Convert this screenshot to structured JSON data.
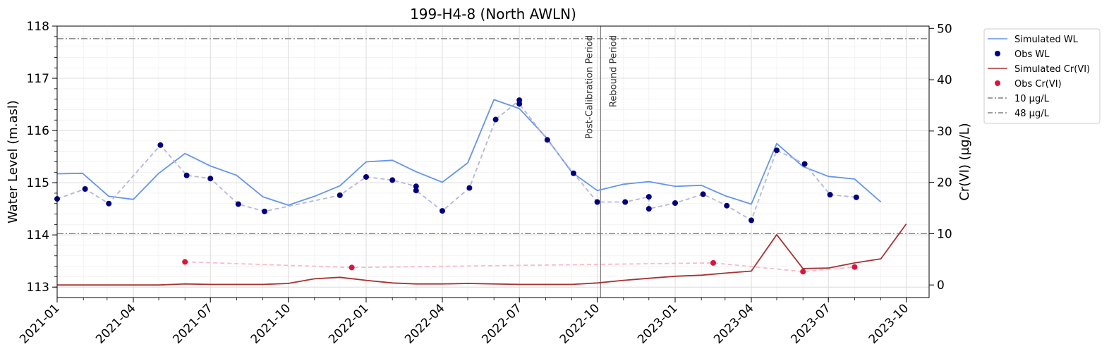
{
  "chart_data": {
    "type": "line",
    "title": "199-H4-8 (North AWLN)",
    "ylabel": "Water Level (m.asl)",
    "y2label": "Cr(VI) (µg/L)",
    "xlim": [
      "2021-01-01",
      "2023-10-28"
    ],
    "ylim": [
      112.8,
      118
    ],
    "y2lim": [
      -2.45,
      50.45
    ],
    "y_ticks": [
      113,
      114,
      115,
      116,
      117,
      118
    ],
    "y2_ticks": [
      0,
      10,
      20,
      30,
      40,
      50
    ],
    "x_tick_dates": [
      "2021-01-01",
      "2021-04-01",
      "2021-07-01",
      "2021-10-01",
      "2022-01-01",
      "2022-04-01",
      "2022-07-01",
      "2022-10-01",
      "2023-01-01",
      "2023-04-01",
      "2023-07-01",
      "2023-10-01"
    ],
    "x_tick_labels": [
      "2021-01",
      "2021-04",
      "2021-07",
      "2021-10",
      "2022-01",
      "2022-04",
      "2022-07",
      "2022-10",
      "2023-01",
      "2023-04",
      "2023-07",
      "2023-10"
    ],
    "grid": true,
    "legend_position": "outside-right-top",
    "series": [
      {
        "name": "Simulated WL",
        "kind": "line",
        "axis": "left",
        "color": "#6495ED",
        "x": [
          "2021-01-01",
          "2021-01-31",
          "2021-03-03",
          "2021-04-01",
          "2021-05-01",
          "2021-06-01",
          "2021-07-01",
          "2021-08-01",
          "2021-09-01",
          "2021-10-01",
          "2021-11-01",
          "2021-12-01",
          "2022-01-01",
          "2022-02-01",
          "2022-03-01",
          "2022-04-01",
          "2022-05-01",
          "2022-06-01",
          "2022-07-01",
          "2022-08-01",
          "2022-09-01",
          "2022-10-01",
          "2022-11-01",
          "2022-12-01",
          "2023-01-01",
          "2023-02-01",
          "2023-03-01",
          "2023-04-01",
          "2023-05-01",
          "2023-06-01",
          "2023-07-01",
          "2023-08-01",
          "2023-09-01"
        ],
        "y": [
          115.17,
          115.18,
          114.74,
          114.68,
          115.18,
          115.56,
          115.32,
          115.14,
          114.73,
          114.57,
          114.74,
          114.94,
          115.4,
          115.43,
          115.21,
          115.01,
          115.38,
          116.59,
          116.42,
          115.88,
          115.2,
          114.85,
          114.97,
          115.02,
          114.93,
          114.95,
          114.75,
          114.59,
          115.75,
          115.31,
          115.12,
          115.07,
          114.63
        ]
      },
      {
        "name": "Obs WL",
        "kind": "scatter",
        "axis": "left",
        "color": "#000080",
        "dashed_connector_color": "#b7b5dc",
        "x": [
          "2021-01-01",
          "2021-02-03",
          "2021-03-03",
          "2021-05-03",
          "2021-06-03",
          "2021-07-01",
          "2021-08-03",
          "2021-09-03",
          "2021-12-01",
          "2022-01-01",
          "2022-02-01",
          "2022-03-01",
          "2022-03-01",
          "2022-04-01",
          "2022-05-03",
          "2022-06-03",
          "2022-07-01",
          "2022-07-01",
          "2022-08-03",
          "2022-09-03",
          "2022-10-01",
          "2022-11-03",
          "2022-12-01",
          "2022-12-01",
          "2023-01-01",
          "2023-02-03",
          "2023-03-03",
          "2023-04-01",
          "2023-05-01",
          "2023-06-03",
          "2023-07-03",
          "2023-08-03"
        ],
        "y": [
          114.69,
          114.88,
          114.6,
          115.72,
          115.14,
          115.08,
          114.59,
          114.45,
          114.76,
          115.11,
          115.05,
          114.93,
          114.85,
          114.46,
          114.9,
          116.21,
          116.58,
          116.51,
          115.82,
          115.18,
          114.63,
          114.63,
          114.73,
          114.5,
          114.61,
          114.78,
          114.56,
          114.28,
          115.62,
          115.36,
          114.77,
          114.72
        ]
      },
      {
        "name": "Simulated Cr(VI)",
        "kind": "line",
        "axis": "right",
        "color": "#a83232",
        "x": [
          "2021-01-01",
          "2021-03-01",
          "2021-05-01",
          "2021-06-01",
          "2021-07-01",
          "2021-08-01",
          "2021-09-01",
          "2021-10-01",
          "2021-11-01",
          "2021-12-01",
          "2022-01-01",
          "2022-02-01",
          "2022-03-01",
          "2022-04-01",
          "2022-05-01",
          "2022-06-01",
          "2022-07-01",
          "2022-08-01",
          "2022-09-01",
          "2022-10-01",
          "2022-11-01",
          "2022-12-01",
          "2023-01-01",
          "2023-02-01",
          "2023-03-01",
          "2023-04-01",
          "2023-05-01",
          "2023-06-01",
          "2023-07-01",
          "2023-08-01",
          "2023-09-01",
          "2023-10-01"
        ],
        "y": [
          0,
          0,
          0,
          0.2,
          0.1,
          0.1,
          0.1,
          0.3,
          1.2,
          1.5,
          0.9,
          0.4,
          0.2,
          0.2,
          0.3,
          0.2,
          0.1,
          0.1,
          0.1,
          0.4,
          0.9,
          1.3,
          1.7,
          1.9,
          2.3,
          2.7,
          9.8,
          3.2,
          3.3,
          4.3,
          5.1,
          11.9
        ]
      },
      {
        "name": "Obs Cr(VI)",
        "kind": "scatter",
        "axis": "right",
        "color": "#dc143c",
        "dashed_connector_color": "#f7bcc8",
        "x": [
          "2021-06-01",
          "2021-12-15",
          "2023-02-15",
          "2023-06-01",
          "2023-08-01"
        ],
        "y": [
          4.5,
          3.4,
          4.3,
          2.6,
          3.5
        ]
      },
      {
        "name": "10 µg/L",
        "kind": "hline",
        "axis": "right",
        "color": "#808080",
        "y": 10
      },
      {
        "name": "48 µg/L",
        "kind": "hline",
        "axis": "right",
        "color": "#808080",
        "y": 48
      }
    ],
    "vline": {
      "x": "2022-10-05",
      "color": "#808080"
    },
    "annotations": [
      "Post-Calibration Period",
      "Rebound Period"
    ]
  }
}
